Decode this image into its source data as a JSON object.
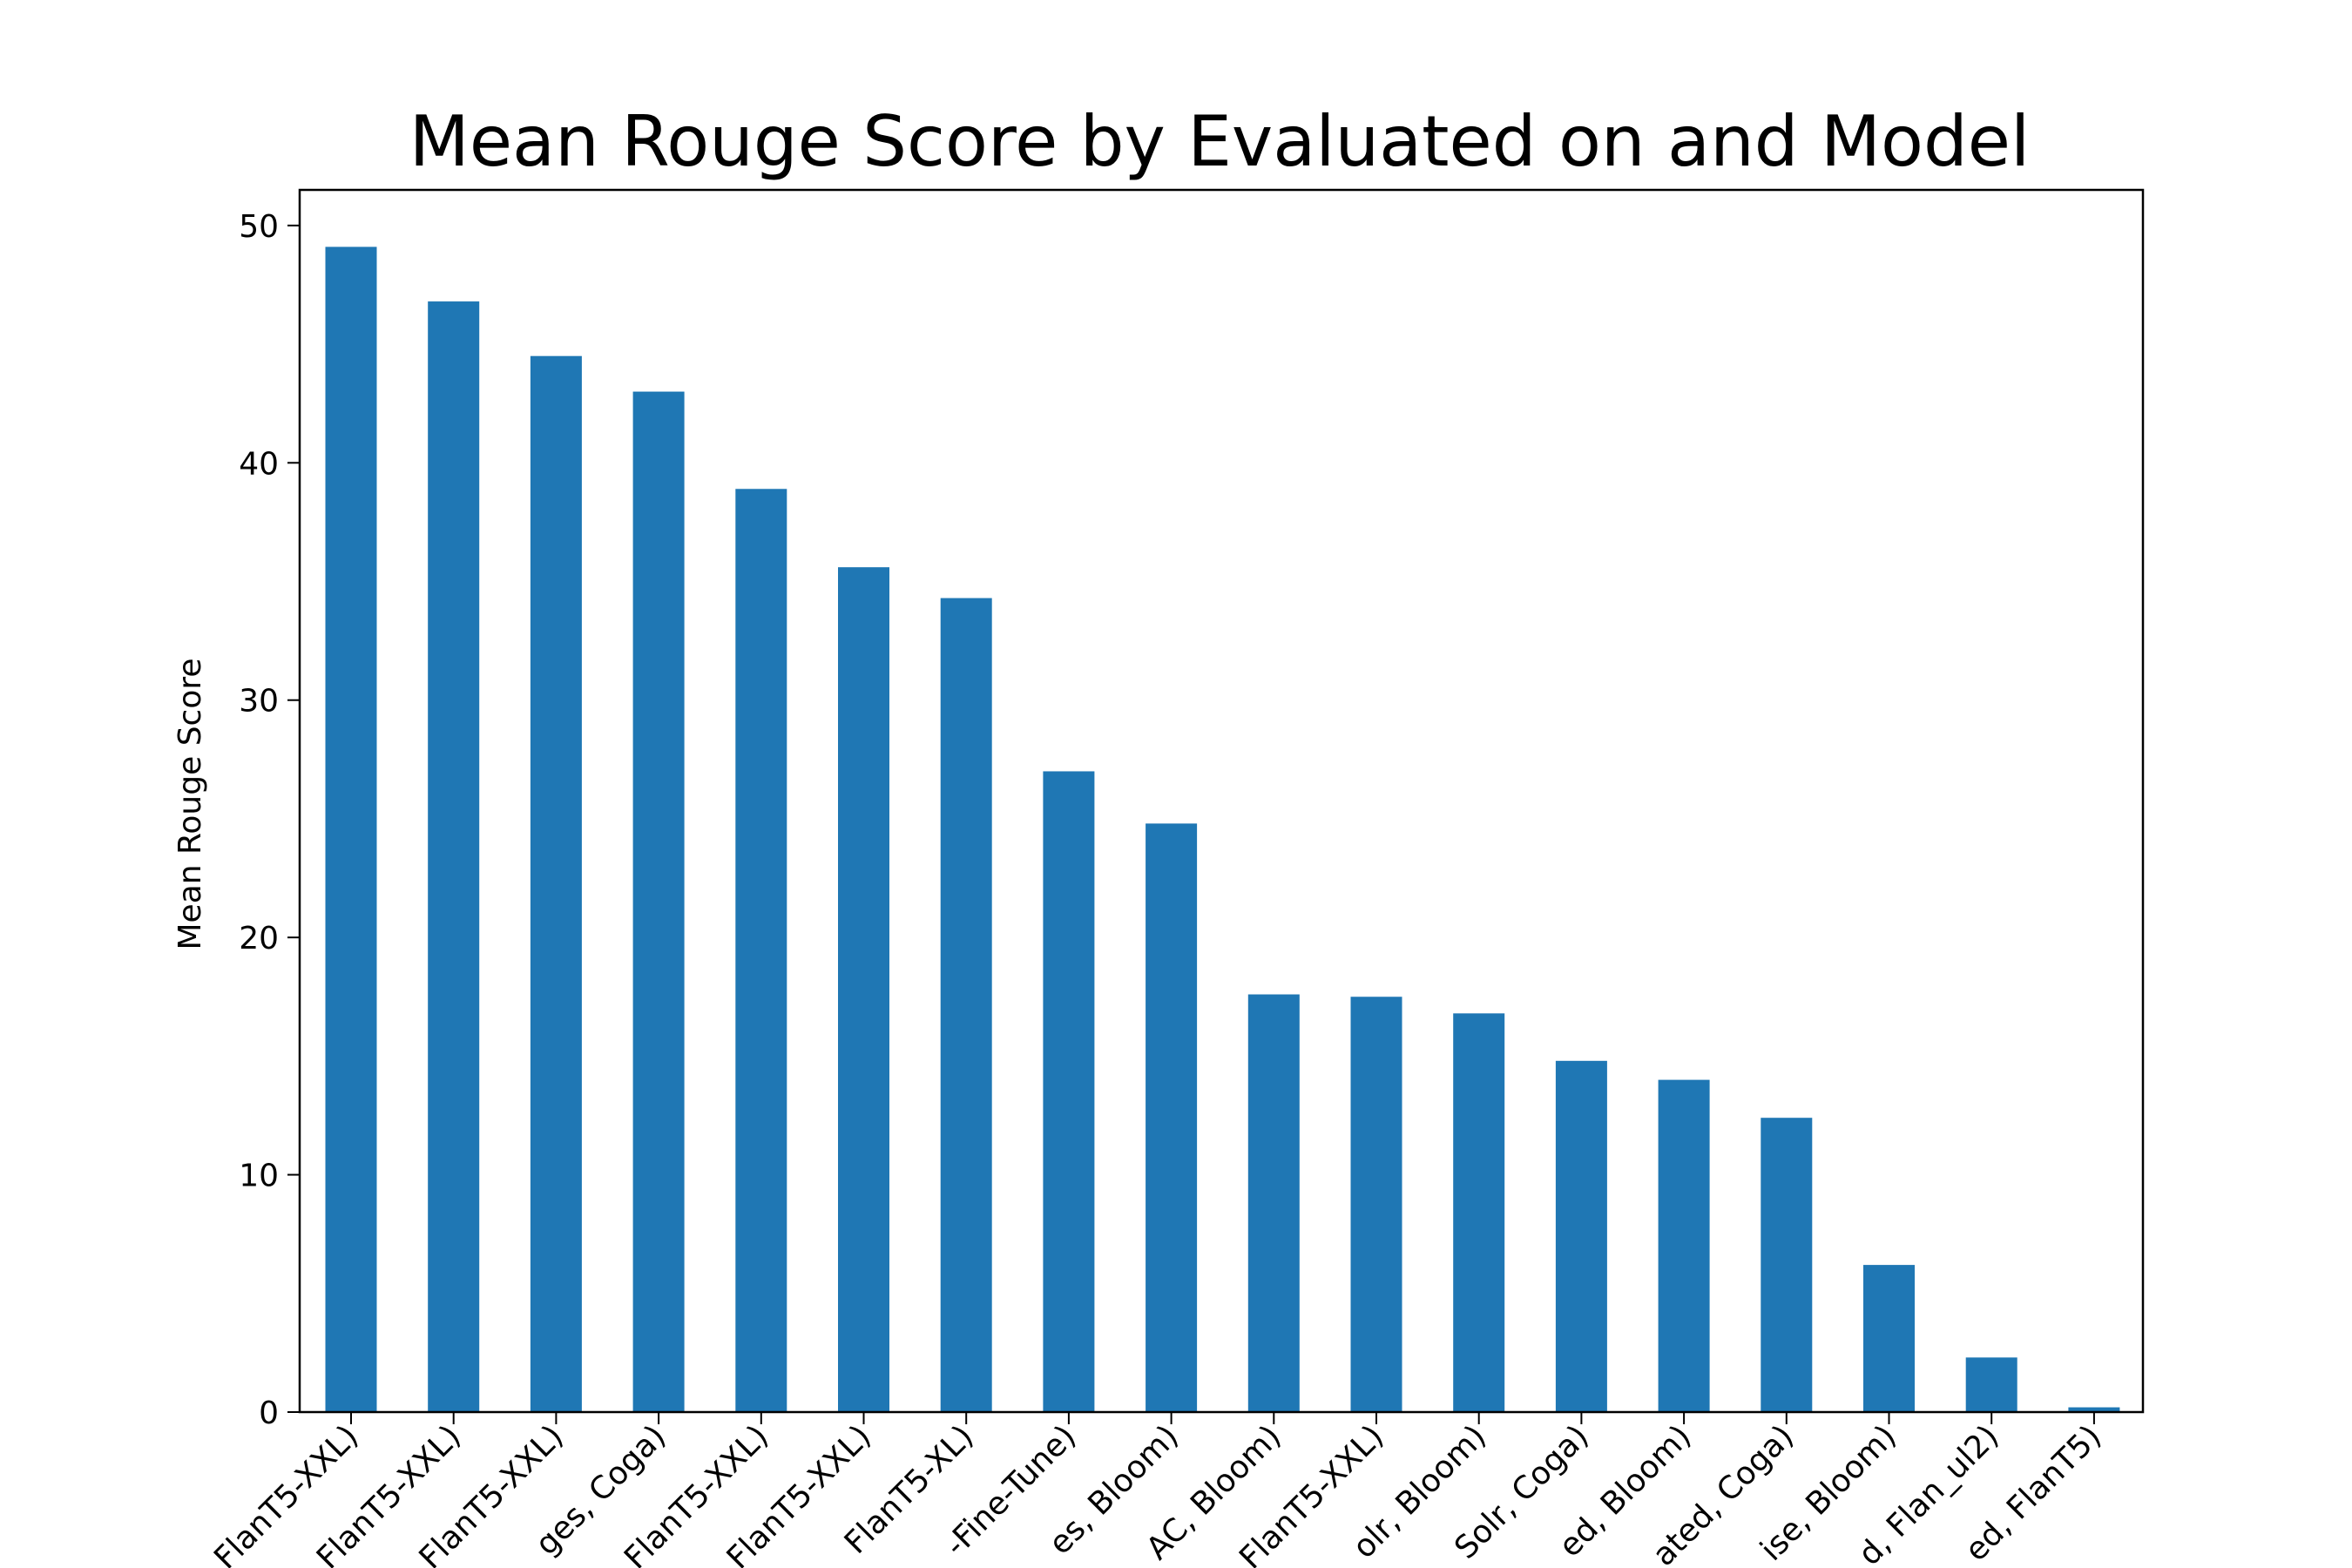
{
  "chart_data": {
    "type": "bar",
    "title": "Mean Rouge Score by Evaluated on and Model",
    "xlabel": "",
    "ylabel": "Mean Rouge Score",
    "ylim": [
      0,
      51.5
    ],
    "yticks": [
      0,
      10,
      20,
      30,
      40,
      50
    ],
    "grid": false,
    "legend": "none",
    "bar_color": "#1f77b4",
    "categories": [
      "FlanT5-XXL)",
      "FlanT5-XXL)",
      "FlanT5-XXL)",
      "ges, Coga)",
      "FlanT5-XXL)",
      "FlanT5-XXL)",
      "FlanT5-XL)",
      "-Fine-Tune)",
      "es, Bloom)",
      "AC, Bloom)",
      "FlanT5-XXL)",
      "olr, Bloom)",
      "Solr, Coga)",
      "ed, Bloom)",
      "ated, Coga)",
      "ise, Bloom)",
      "d, Flan_ul2)",
      "ed, FlanT5)"
    ],
    "values": [
      49.1,
      46.8,
      44.5,
      43.0,
      38.9,
      35.6,
      34.3,
      27.0,
      24.8,
      17.6,
      17.5,
      16.8,
      14.8,
      14.0,
      12.4,
      6.2,
      2.3,
      0.2
    ]
  }
}
